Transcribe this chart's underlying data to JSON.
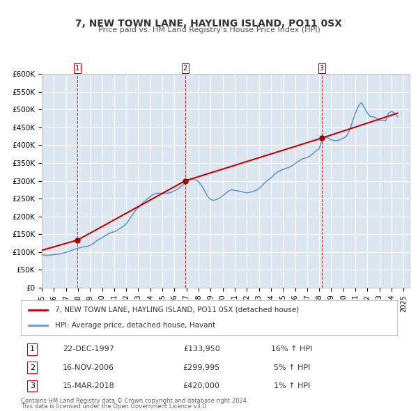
{
  "title": "7, NEW TOWN LANE, HAYLING ISLAND, PO11 0SX",
  "subtitle": "Price paid vs. HM Land Registry's House Price Index (HPI)",
  "ylabel": "",
  "background_color": "#ffffff",
  "plot_bg_color": "#dce6f1",
  "grid_color": "#ffffff",
  "ylim": [
    0,
    600000
  ],
  "yticks": [
    0,
    50000,
    100000,
    150000,
    200000,
    250000,
    300000,
    350000,
    400000,
    450000,
    500000,
    550000,
    600000
  ],
  "ytick_labels": [
    "£0",
    "£50K",
    "£100K",
    "£150K",
    "£200K",
    "£250K",
    "£300K",
    "£350K",
    "£400K",
    "£450K",
    "£500K",
    "£550K",
    "£600K"
  ],
  "xlim_start": 1995.0,
  "xlim_end": 2025.5,
  "xticks": [
    1995,
    1996,
    1997,
    1998,
    1999,
    2000,
    2001,
    2002,
    2003,
    2004,
    2005,
    2006,
    2007,
    2008,
    2009,
    2010,
    2011,
    2012,
    2013,
    2014,
    2015,
    2016,
    2017,
    2018,
    2019,
    2020,
    2021,
    2022,
    2023,
    2024,
    2025
  ],
  "sale_color": "#cc0000",
  "hpi_color": "#6699cc",
  "vline_color": "#cc0000",
  "sale_dot_color": "#990000",
  "transactions": [
    {
      "num": 1,
      "date": "22-DEC-1997",
      "year": 1997.97,
      "price": 133950,
      "pct": "16%",
      "dir": "↑"
    },
    {
      "num": 2,
      "date": "16-NOV-2006",
      "year": 2006.88,
      "price": 299995,
      "pct": "5%",
      "dir": "↑"
    },
    {
      "num": 3,
      "date": "15-MAR-2018",
      "year": 2018.21,
      "price": 420000,
      "pct": "1%",
      "dir": "↑"
    }
  ],
  "legend_label_sale": "7, NEW TOWN LANE, HAYLING ISLAND, PO11 0SX (detached house)",
  "legend_label_hpi": "HPI: Average price, detached house, Havant",
  "footer1": "Contains HM Land Registry data © Crown copyright and database right 2024.",
  "footer2": "This data is licensed under the Open Government Licence v3.0.",
  "hpi_data_x": [
    1995.0,
    1995.25,
    1995.5,
    1995.75,
    1996.0,
    1996.25,
    1996.5,
    1996.75,
    1997.0,
    1997.25,
    1997.5,
    1997.75,
    1998.0,
    1998.25,
    1998.5,
    1998.75,
    1999.0,
    1999.25,
    1999.5,
    1999.75,
    2000.0,
    2000.25,
    2000.5,
    2000.75,
    2001.0,
    2001.25,
    2001.5,
    2001.75,
    2002.0,
    2002.25,
    2002.5,
    2002.75,
    2003.0,
    2003.25,
    2003.5,
    2003.75,
    2004.0,
    2004.25,
    2004.5,
    2004.75,
    2005.0,
    2005.25,
    2005.5,
    2005.75,
    2006.0,
    2006.25,
    2006.5,
    2006.75,
    2007.0,
    2007.25,
    2007.5,
    2007.75,
    2008.0,
    2008.25,
    2008.5,
    2008.75,
    2009.0,
    2009.25,
    2009.5,
    2009.75,
    2010.0,
    2010.25,
    2010.5,
    2010.75,
    2011.0,
    2011.25,
    2011.5,
    2011.75,
    2012.0,
    2012.25,
    2012.5,
    2012.75,
    2013.0,
    2013.25,
    2013.5,
    2013.75,
    2014.0,
    2014.25,
    2014.5,
    2014.75,
    2015.0,
    2015.25,
    2015.5,
    2015.75,
    2016.0,
    2016.25,
    2016.5,
    2016.75,
    2017.0,
    2017.25,
    2017.5,
    2017.75,
    2018.0,
    2018.25,
    2018.5,
    2018.75,
    2019.0,
    2019.25,
    2019.5,
    2019.75,
    2020.0,
    2020.25,
    2020.5,
    2020.75,
    2021.0,
    2021.25,
    2021.5,
    2021.75,
    2022.0,
    2022.25,
    2022.5,
    2022.75,
    2023.0,
    2023.25,
    2023.5,
    2023.75,
    2024.0,
    2024.25,
    2024.5
  ],
  "hpi_data_y": [
    92000,
    91500,
    90500,
    92000,
    93000,
    94000,
    95000,
    97000,
    99000,
    102000,
    105000,
    108000,
    111000,
    113000,
    115000,
    116000,
    119000,
    124000,
    130000,
    136000,
    140000,
    146000,
    151000,
    155000,
    157000,
    161000,
    167000,
    172000,
    179000,
    191000,
    204000,
    216000,
    225000,
    234000,
    242000,
    249000,
    256000,
    262000,
    265000,
    265000,
    264000,
    265000,
    266000,
    268000,
    272000,
    277000,
    283000,
    290000,
    298000,
    302000,
    305000,
    303000,
    298000,
    287000,
    272000,
    256000,
    248000,
    245000,
    248000,
    252000,
    258000,
    265000,
    272000,
    275000,
    273000,
    272000,
    270000,
    268000,
    266000,
    268000,
    270000,
    273000,
    278000,
    286000,
    295000,
    302000,
    308000,
    317000,
    324000,
    328000,
    332000,
    335000,
    338000,
    342000,
    348000,
    354000,
    360000,
    363000,
    366000,
    370000,
    377000,
    385000,
    390000,
    418000,
    424000,
    420000,
    415000,
    413000,
    413000,
    416000,
    420000,
    425000,
    440000,
    465000,
    490000,
    510000,
    520000,
    505000,
    490000,
    480000,
    480000,
    475000,
    470000,
    470000,
    468000,
    490000,
    495000,
    490000,
    480000
  ],
  "sale_line_x": [
    1995.0,
    1997.97,
    2006.88,
    2018.21,
    2024.5
  ],
  "sale_line_y": [
    105000,
    133950,
    299995,
    420000,
    490000
  ]
}
